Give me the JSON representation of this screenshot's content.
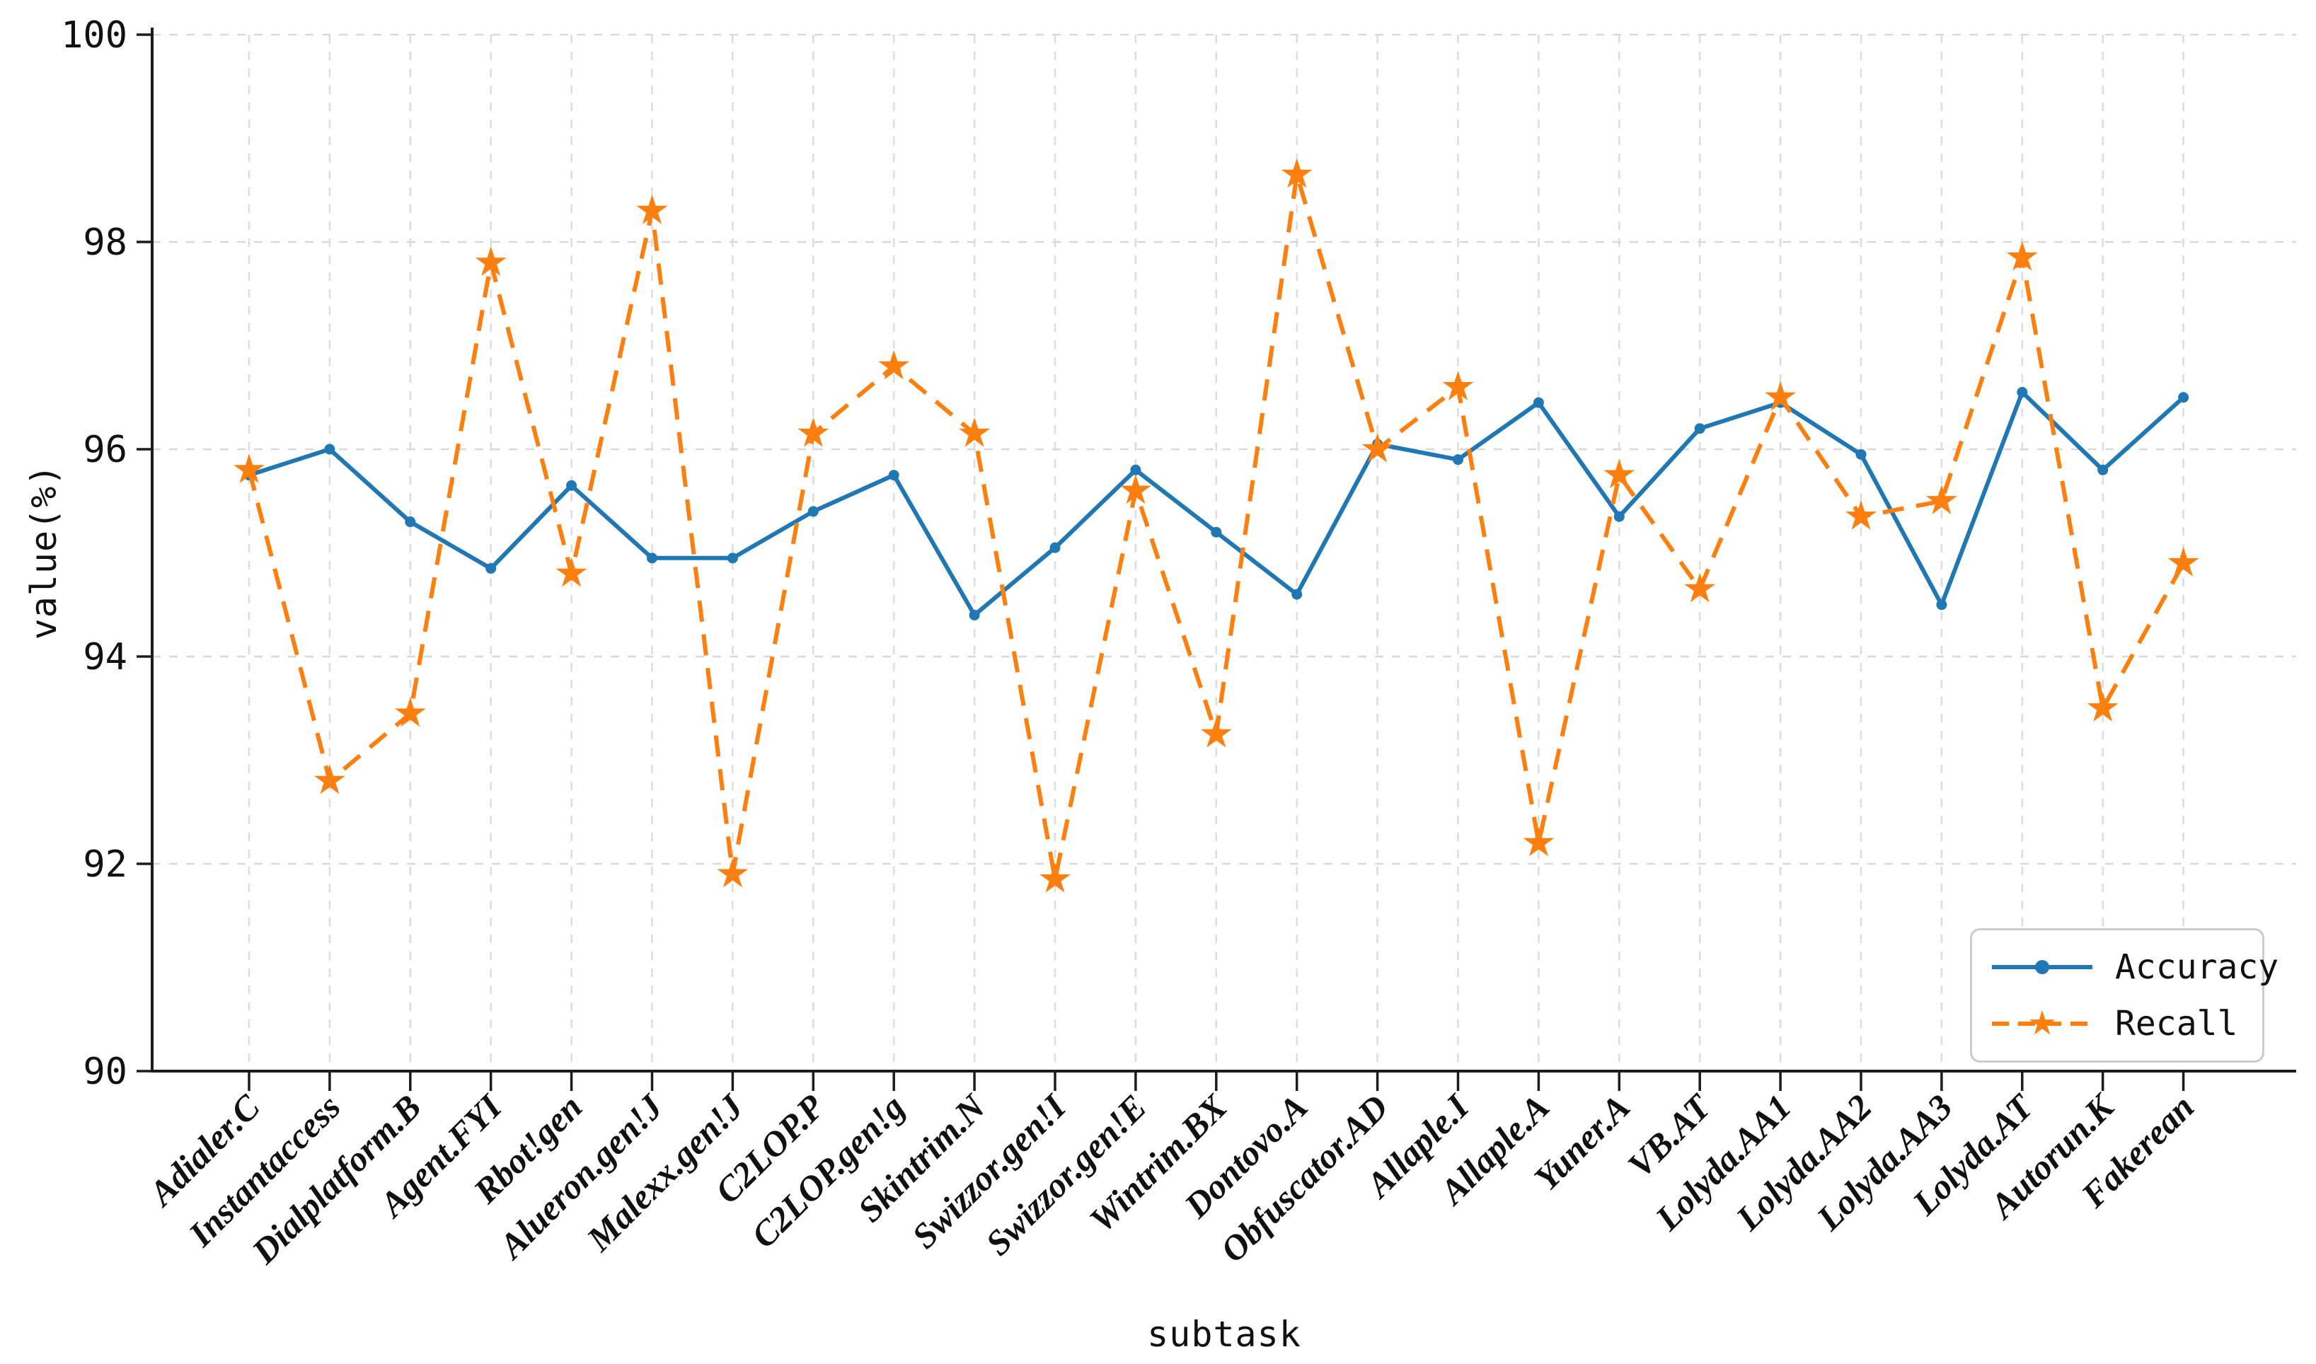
{
  "chart_data": {
    "type": "line",
    "title": "",
    "xlabel": "subtask",
    "ylabel": "value(%)",
    "ylim": [
      90,
      100
    ],
    "yticks": [
      90,
      92,
      94,
      96,
      98,
      100
    ],
    "grid": true,
    "grid_style": "dashed",
    "legend_position": "lower right",
    "categories": [
      "Adialer.C",
      "Instantaccess",
      "Dialplatform.B",
      "Agent.FYI",
      "Rbot!gen",
      "Alueron.gen!J",
      "Malexx.gen!J",
      "C2LOP.P",
      "C2LOP.gen!g",
      "Skintrim.N",
      "Swizzor.gen!I",
      "Swizzor.gen!E",
      "Wintrim.BX",
      "Dontovo.A",
      "Obfuscator.AD",
      "Allaple.I",
      "Allaple.A",
      "Yuner.A",
      "VB.AT",
      "Lolyda.AA1",
      "Lolyda.AA2",
      "Lolyda.AA3",
      "Lolyda.AT",
      "Autorun.K",
      "Fakerean"
    ],
    "series": [
      {
        "name": "Accuracy",
        "color": "#1f77b4",
        "line_style": "solid",
        "marker": "circle",
        "values": [
          95.75,
          96.0,
          95.3,
          94.85,
          95.65,
          94.95,
          94.95,
          95.4,
          95.75,
          94.4,
          95.05,
          95.8,
          95.2,
          94.6,
          96.05,
          95.9,
          96.45,
          95.35,
          96.2,
          96.45,
          95.95,
          94.5,
          96.55,
          95.8,
          96.5
        ]
      },
      {
        "name": "Recall",
        "color": "#ff7f0e",
        "line_style": "dashed",
        "marker": "star",
        "values": [
          95.8,
          92.8,
          93.45,
          97.8,
          94.8,
          98.3,
          91.9,
          96.15,
          96.8,
          96.15,
          91.85,
          95.6,
          93.25,
          98.65,
          96.0,
          96.6,
          92.2,
          95.75,
          94.65,
          96.5,
          95.35,
          95.5,
          97.85,
          93.5,
          94.9
        ]
      }
    ]
  }
}
